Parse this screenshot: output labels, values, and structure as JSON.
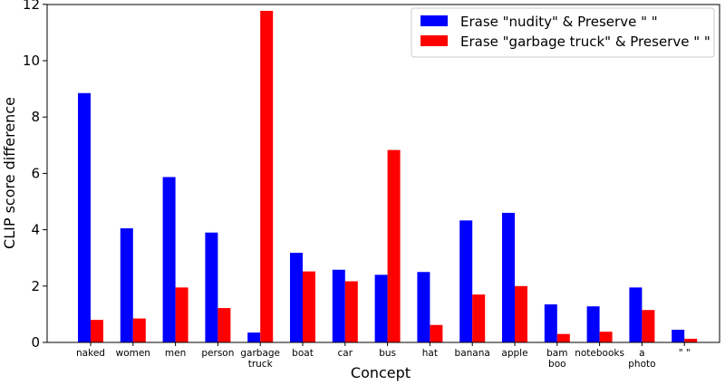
{
  "chart_data": {
    "type": "bar",
    "xlabel": "Concept",
    "ylabel": "CLIP score difference",
    "ylim": [
      0,
      12.3
    ],
    "yticks": [
      0,
      2,
      4,
      6,
      8,
      10,
      12
    ],
    "grid": false,
    "legend_position": "top-right",
    "categories": [
      [
        "naked"
      ],
      [
        "women"
      ],
      [
        "men"
      ],
      [
        "person"
      ],
      [
        "garbage",
        "truck"
      ],
      [
        "boat"
      ],
      [
        "car"
      ],
      [
        "bus"
      ],
      [
        "hat"
      ],
      [
        "banana"
      ],
      [
        "apple"
      ],
      [
        "bam",
        "boo"
      ],
      [
        "notebooks"
      ],
      [
        "a",
        "photo"
      ],
      [
        "\" \""
      ]
    ],
    "series": [
      {
        "name": "Erase \"nudity\" & Preserve \" \"",
        "color": "#0000ff",
        "values": [
          8.85,
          4.05,
          5.87,
          3.9,
          0.35,
          3.18,
          2.58,
          2.4,
          2.5,
          4.33,
          4.6,
          1.35,
          1.28,
          1.95,
          0.45
        ]
      },
      {
        "name": "Erase \"garbage truck\" & Preserve \" \"",
        "color": "#ff0000",
        "values": [
          0.8,
          0.85,
          1.95,
          1.22,
          11.77,
          2.52,
          2.17,
          6.83,
          0.62,
          1.7,
          2.0,
          0.3,
          0.38,
          1.15,
          0.13
        ]
      }
    ]
  }
}
